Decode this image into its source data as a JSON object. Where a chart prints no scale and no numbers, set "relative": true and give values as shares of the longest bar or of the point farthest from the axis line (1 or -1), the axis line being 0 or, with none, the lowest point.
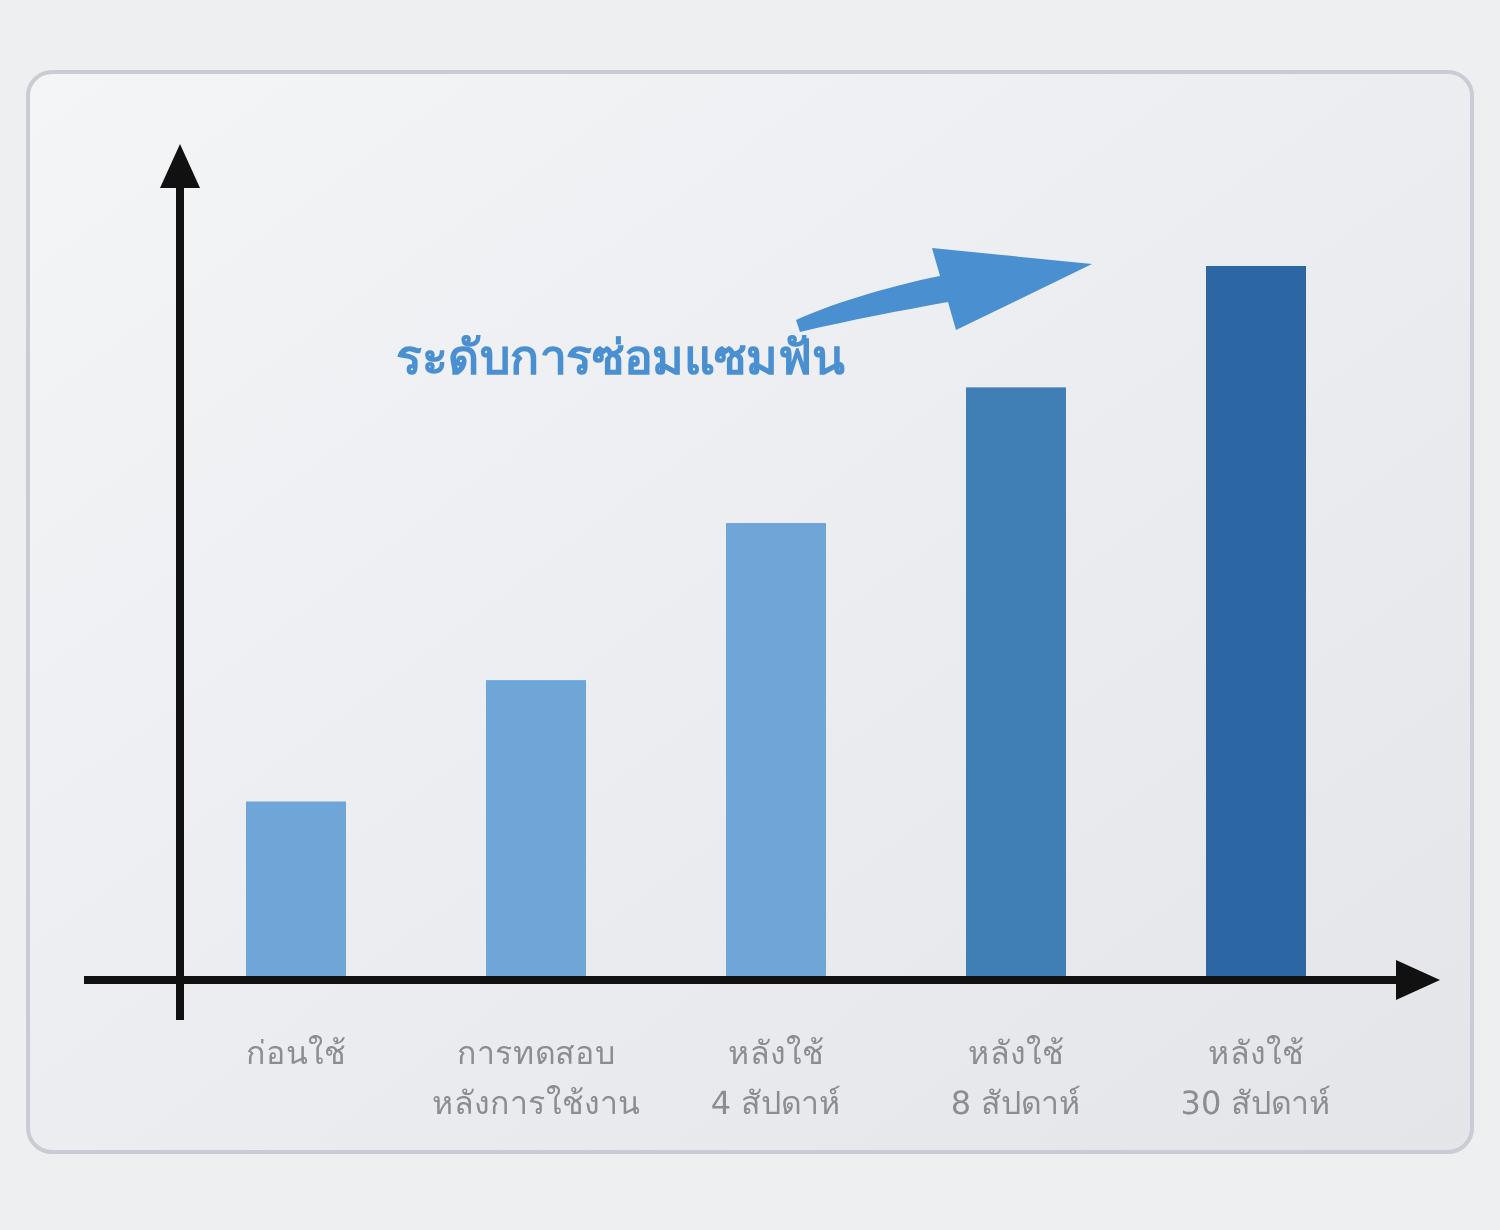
{
  "chart_data": {
    "type": "bar",
    "relative": true,
    "title": "ระดับการซ่อมแซมฟัน",
    "categories": [
      "ก่อนใช้",
      "การทดสอบ\nหลังการใช้งาน",
      "หลังใช้\n4 สัปดาห์",
      "หลังใช้\n8 สัปดาห์",
      "หลังใช้\n30 สัปดาห์"
    ],
    "values": [
      0.25,
      0.42,
      0.64,
      0.83,
      1
    ],
    "colors": [
      "#6fa6d8",
      "#6fa6d8",
      "#6fa6d8",
      "#3f7fb6",
      "#2c67a3"
    ]
  }
}
